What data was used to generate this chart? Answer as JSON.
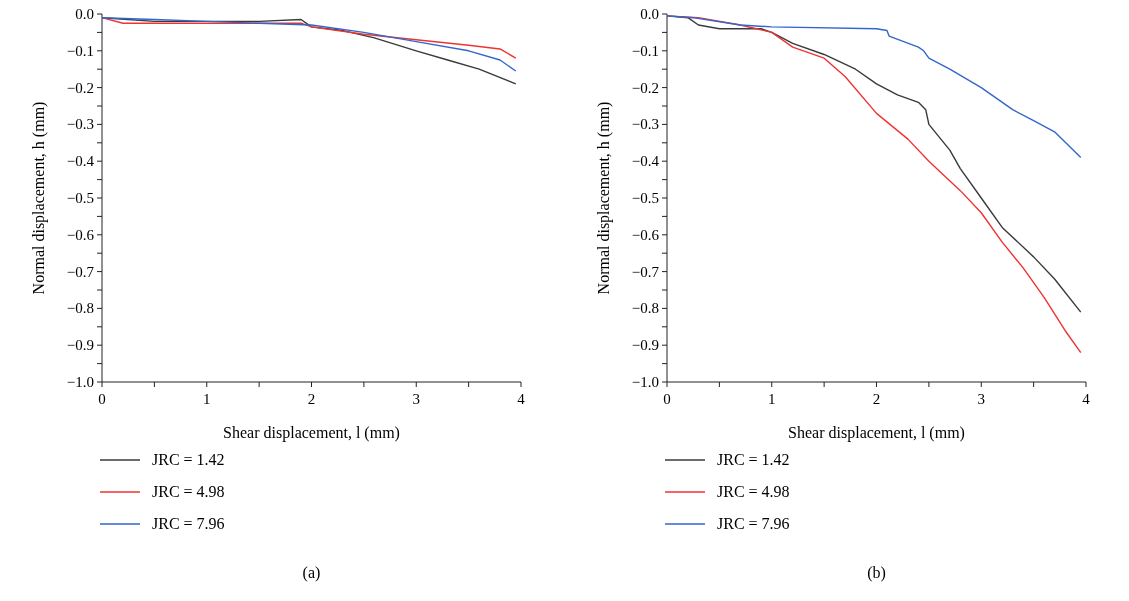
{
  "chart_data": [
    {
      "type": "line",
      "xlabel": "Shear displacement, l (mm)",
      "ylabel": "Normal displacement, h (mm)",
      "annotations": [
        "(a)"
      ],
      "legend": "bottom",
      "grid": false,
      "xlim": [
        0,
        4
      ],
      "ylim": [
        -1,
        0
      ],
      "xticks": [
        0,
        {
          "value": 0.5,
          "label": null
        },
        1,
        {
          "value": 1.5,
          "label": null
        },
        2,
        {
          "value": 2.5,
          "label": null
        },
        3,
        {
          "value": 3.5,
          "label": null
        },
        4
      ],
      "yticks": [
        {
          "value": 0,
          "label": "0.0"
        },
        {
          "value": -0.05,
          "label": null
        },
        {
          "value": -0.1,
          "label": "−0.1"
        },
        {
          "value": -0.15,
          "label": null
        },
        {
          "value": -0.2,
          "label": "−0.2"
        },
        {
          "value": -0.25,
          "label": null
        },
        {
          "value": -0.3,
          "label": "−0.3"
        },
        {
          "value": -0.35,
          "label": null
        },
        {
          "value": -0.4,
          "label": "−0.4"
        },
        {
          "value": -0.45,
          "label": null
        },
        {
          "value": -0.5,
          "label": "−0.5"
        },
        {
          "value": -0.55,
          "label": null
        },
        {
          "value": -0.6,
          "label": "−0.6"
        },
        {
          "value": -0.65,
          "label": null
        },
        {
          "value": -0.7,
          "label": "−0.7"
        },
        {
          "value": -0.75,
          "label": null
        },
        {
          "value": -0.8,
          "label": "−0.8"
        },
        {
          "value": -0.85,
          "label": null
        },
        {
          "value": -0.9,
          "label": "−0.9"
        },
        {
          "value": -0.95,
          "label": null
        },
        {
          "value": -1,
          "label": "−1.0"
        }
      ],
      "series": [
        {
          "name": "JRC = 1.42",
          "color": "#3a3a3a",
          "x": [
            0,
            0.5,
            1,
            1.5,
            1.9,
            2,
            2.3,
            2.6,
            3,
            3.3,
            3.6,
            3.95
          ],
          "values": [
            -0.01,
            -0.02,
            -0.02,
            -0.02,
            -0.015,
            -0.035,
            -0.045,
            -0.065,
            -0.1,
            -0.125,
            -0.15,
            -0.19
          ]
        },
        {
          "name": "JRC = 4.98",
          "color": "#ee3333",
          "x": [
            0,
            0.2,
            1,
            1.9,
            2,
            2.5,
            3,
            3.5,
            3.8,
            3.95
          ],
          "values": [
            -0.01,
            -0.025,
            -0.025,
            -0.025,
            -0.035,
            -0.055,
            -0.07,
            -0.085,
            -0.095,
            -0.12
          ]
        },
        {
          "name": "JRC = 7.96",
          "color": "#3366cc",
          "x": [
            0,
            0.5,
            1,
            1.5,
            2,
            2.5,
            3,
            3.5,
            3.8,
            3.95
          ],
          "values": [
            -0.01,
            -0.015,
            -0.02,
            -0.025,
            -0.03,
            -0.05,
            -0.075,
            -0.1,
            -0.125,
            -0.155
          ]
        }
      ]
    },
    {
      "type": "line",
      "xlabel": "Shear displacement, l (mm)",
      "ylabel": "Normal displacement, h (mm)",
      "annotations": [
        "(b)"
      ],
      "legend": "bottom",
      "grid": false,
      "xlim": [
        0,
        4
      ],
      "ylim": [
        -1,
        0
      ],
      "xticks": [
        0,
        {
          "value": 0.5,
          "label": null
        },
        1,
        {
          "value": 1.5,
          "label": null
        },
        2,
        {
          "value": 2.5,
          "label": null
        },
        3,
        {
          "value": 3.5,
          "label": null
        },
        4
      ],
      "yticks": [
        {
          "value": 0,
          "label": "0.0"
        },
        {
          "value": -0.05,
          "label": null
        },
        {
          "value": -0.1,
          "label": "−0.1"
        },
        {
          "value": -0.15,
          "label": null
        },
        {
          "value": -0.2,
          "label": "−0.2"
        },
        {
          "value": -0.25,
          "label": null
        },
        {
          "value": -0.3,
          "label": "−0.3"
        },
        {
          "value": -0.35,
          "label": null
        },
        {
          "value": -0.4,
          "label": "−0.4"
        },
        {
          "value": -0.45,
          "label": null
        },
        {
          "value": -0.5,
          "label": "−0.5"
        },
        {
          "value": -0.55,
          "label": null
        },
        {
          "value": -0.6,
          "label": "−0.6"
        },
        {
          "value": -0.65,
          "label": null
        },
        {
          "value": -0.7,
          "label": "−0.7"
        },
        {
          "value": -0.75,
          "label": null
        },
        {
          "value": -0.8,
          "label": "−0.8"
        },
        {
          "value": -0.85,
          "label": null
        },
        {
          "value": -0.9,
          "label": "−0.9"
        },
        {
          "value": -0.95,
          "label": null
        },
        {
          "value": -1,
          "label": "−1.0"
        }
      ],
      "series": [
        {
          "name": "JRC = 1.42",
          "color": "#3a3a3a",
          "x": [
            0,
            0.2,
            0.3,
            0.5,
            0.9,
            1,
            1.2,
            1.5,
            1.8,
            2,
            2.2,
            2.4,
            2.47,
            2.5,
            2.7,
            2.8,
            3,
            3.2,
            3.5,
            3.7,
            3.95
          ],
          "values": [
            -0.005,
            -0.01,
            -0.03,
            -0.04,
            -0.04,
            -0.05,
            -0.08,
            -0.11,
            -0.15,
            -0.19,
            -0.22,
            -0.24,
            -0.26,
            -0.3,
            -0.37,
            -0.42,
            -0.5,
            -0.58,
            -0.66,
            -0.72,
            -0.81
          ]
        },
        {
          "name": "JRC = 4.98",
          "color": "#ee3333",
          "x": [
            0,
            0.3,
            0.7,
            1,
            1.2,
            1.5,
            1.7,
            2,
            2.3,
            2.5,
            2.8,
            3,
            3.2,
            3.4,
            3.6,
            3.8,
            3.95
          ],
          "values": [
            -0.005,
            -0.01,
            -0.03,
            -0.05,
            -0.09,
            -0.12,
            -0.17,
            -0.27,
            -0.34,
            -0.4,
            -0.48,
            -0.54,
            -0.62,
            -0.69,
            -0.77,
            -0.86,
            -0.92
          ]
        },
        {
          "name": "JRC = 7.96",
          "color": "#3366cc",
          "x": [
            0,
            0.25,
            0.7,
            1,
            2,
            2.1,
            2.12,
            2.4,
            2.45,
            2.5,
            2.7,
            3,
            3.3,
            3.5,
            3.7,
            3.95
          ],
          "values": [
            -0.005,
            -0.01,
            -0.03,
            -0.035,
            -0.04,
            -0.045,
            -0.06,
            -0.09,
            -0.1,
            -0.12,
            -0.15,
            -0.2,
            -0.26,
            -0.29,
            -0.32,
            -0.39
          ]
        }
      ]
    }
  ]
}
